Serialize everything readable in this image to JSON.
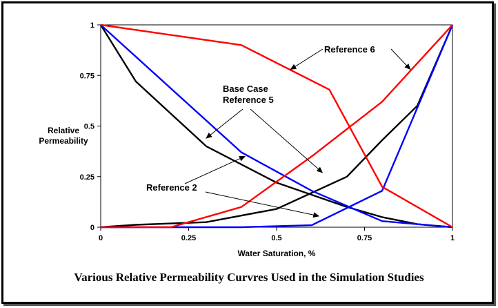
{
  "caption": "Various Relative Permeability Curvres Used in the Simulation Studies",
  "chart_data": {
    "type": "line",
    "xlabel": "Water Saturation, %",
    "ylabel": [
      "Relative",
      "Permeability"
    ],
    "xlim": [
      0,
      1
    ],
    "ylim": [
      0,
      1
    ],
    "xticks": [
      "0",
      "0.25",
      "0.5",
      "0.75",
      "1"
    ],
    "yticks": [
      "0",
      "0.25",
      "0.5",
      "0.75",
      "1"
    ],
    "grid": false,
    "legend": "none",
    "series": [
      {
        "color": "#000000",
        "x": [
          0,
          0.1,
          0.3,
          0.5,
          0.7,
          0.8,
          0.9,
          1
        ],
        "y": [
          1,
          0.72,
          0.4,
          0.22,
          0.1,
          0.05,
          0.015,
          0
        ]
      },
      {
        "color": "#000000",
        "x": [
          0,
          0.1,
          0.3,
          0.5,
          0.7,
          0.8,
          0.9,
          1
        ],
        "y": [
          0,
          0.012,
          0.025,
          0.09,
          0.25,
          0.43,
          0.6,
          1
        ]
      },
      {
        "color": "#0000ff",
        "x": [
          0,
          0.4,
          0.6,
          0.8,
          1
        ],
        "y": [
          1,
          0.37,
          0.18,
          0.03,
          0
        ]
      },
      {
        "color": "#0000ff",
        "x": [
          0,
          0.4,
          0.6,
          0.8,
          1
        ],
        "y": [
          0,
          0,
          0.01,
          0.18,
          1
        ]
      },
      {
        "color": "#ff0000",
        "x": [
          0,
          0.4,
          0.65,
          0.8,
          1
        ],
        "y": [
          1,
          0.9,
          0.68,
          0.2,
          0
        ]
      },
      {
        "color": "#ff0000",
        "x": [
          0,
          0.2,
          0.4,
          0.6,
          0.8,
          1
        ],
        "y": [
          0,
          0,
          0.1,
          0.35,
          0.62,
          1
        ]
      }
    ],
    "annotations": [
      {
        "id": "reference-6",
        "lines": [
          "Reference 6"
        ],
        "pointers": [
          [
            0.54,
            0.78
          ],
          [
            0.88,
            0.78
          ]
        ]
      },
      {
        "id": "base-case-reference-5",
        "lines": [
          "Base Case",
          "Reference 5"
        ],
        "pointers": [
          [
            0.3,
            0.44
          ],
          [
            0.63,
            0.27
          ]
        ]
      },
      {
        "id": "reference-2",
        "lines": [
          "Reference 2"
        ],
        "pointers": [
          [
            0.41,
            0.35
          ],
          [
            0.62,
            0.055
          ]
        ]
      }
    ]
  }
}
